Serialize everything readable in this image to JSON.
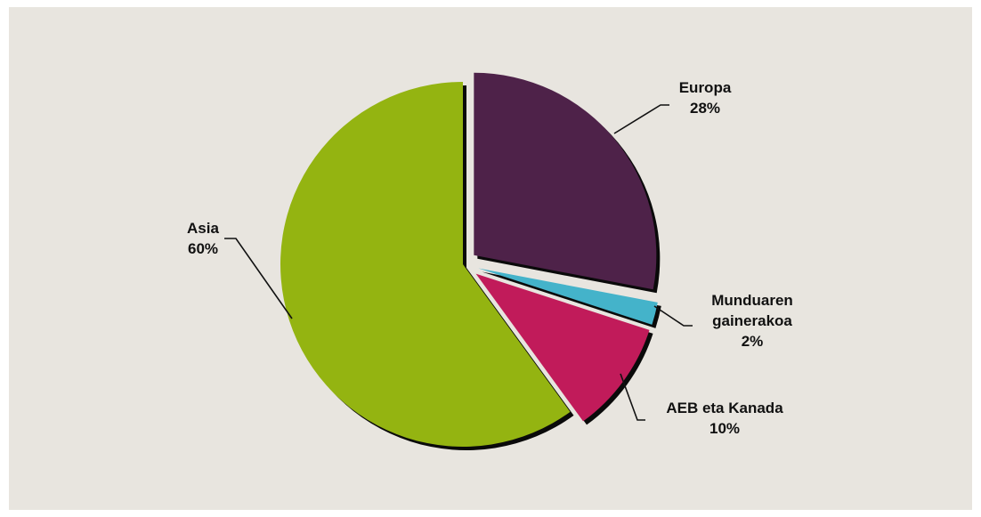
{
  "chart_data": {
    "type": "pie",
    "title": "",
    "slices": [
      {
        "key": "europa",
        "label_lines": [
          "Europa"
        ],
        "percent_label": "28%",
        "value": 28,
        "color": "#4e2249"
      },
      {
        "key": "munduaren-gainerakoa",
        "label_lines": [
          "Munduaren",
          "gainerakoa"
        ],
        "percent_label": "2%",
        "value": 2,
        "color": "#44b3ca"
      },
      {
        "key": "aeb-eta-kanada",
        "label_lines": [
          "AEB eta Kanada"
        ],
        "percent_label": "10%",
        "value": 10,
        "color": "#c11b5a"
      },
      {
        "key": "asia",
        "label_lines": [
          "Asia"
        ],
        "percent_label": "60%",
        "value": 60,
        "color": "#94b411"
      }
    ],
    "start_angle": "12 o'clock",
    "direction": "clockwise",
    "exploded": [
      "europa",
      "munduaren-gainerakoa",
      "aeb-eta-kanada"
    ],
    "legend": "none (callout labels)"
  },
  "colors": {
    "background": "#e8e5df",
    "shadow": "#0a0a0a",
    "leader": "#111111"
  }
}
